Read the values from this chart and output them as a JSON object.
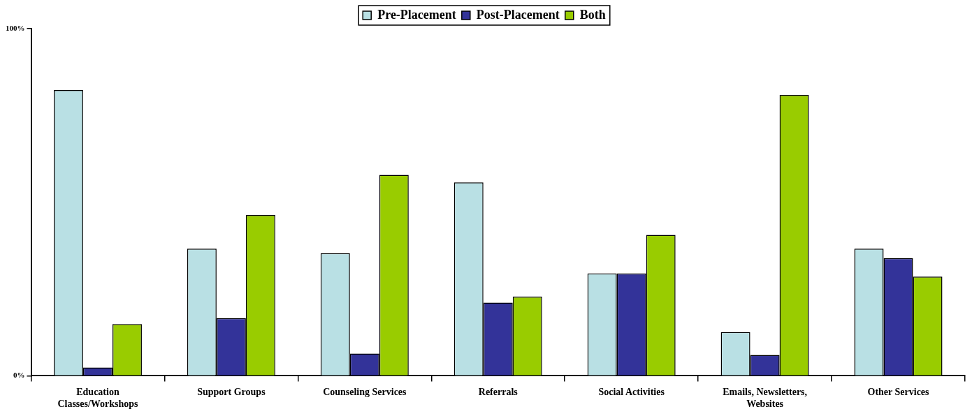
{
  "chart_data": {
    "type": "bar",
    "categories": [
      "Education Classes/Workshops",
      "Support Groups",
      "Counseling Services",
      "Referrals",
      "Social Activities",
      "Emails, Newsletters, Websites",
      "Other Services"
    ],
    "series": [
      {
        "name": "Pre-Placement",
        "color": "#b9e0e4",
        "values": [
          82.3,
          36.6,
          35.3,
          55.7,
          29.5,
          12.6,
          36.6
        ]
      },
      {
        "name": "Post-Placement",
        "color": "#333399",
        "values": [
          2.4,
          16.6,
          6.4,
          21.1,
          29.5,
          6.0,
          33.9
        ]
      },
      {
        "name": "Both",
        "color": "#99cc00",
        "values": [
          14.9,
          46.3,
          57.9,
          22.8,
          40.6,
          80.9,
          28.6
        ]
      }
    ],
    "ylim": [
      0,
      100
    ],
    "yticks": [
      {
        "value": 0,
        "label": "0%"
      },
      {
        "value": 100,
        "label": "100%"
      }
    ],
    "grid": false,
    "legend": "top"
  }
}
